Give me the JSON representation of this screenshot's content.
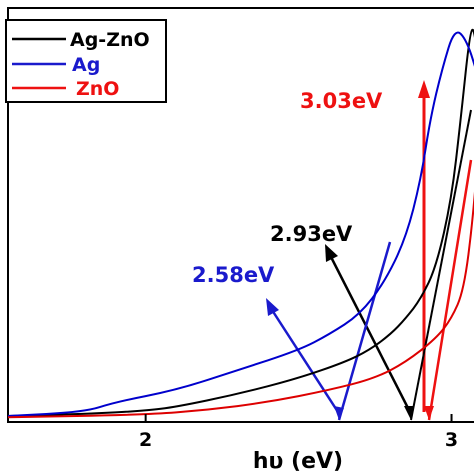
{
  "chart_data": {
    "type": "line",
    "xlabel": "hυ (eV)",
    "ylabel": "",
    "xlim": [
      1.55,
      3.08
    ],
    "ylim": [
      0,
      1
    ],
    "xticks": [
      2,
      3
    ],
    "xtick_labels": [
      "2",
      "3"
    ],
    "grid": false,
    "legend_position": "top-left",
    "series": [
      {
        "name": "Ag-ZnO",
        "color": "#000000",
        "points": [
          [
            1.55,
            0.005
          ],
          [
            1.8,
            0.01
          ],
          [
            2.0,
            0.018
          ],
          [
            2.1,
            0.028
          ],
          [
            2.3,
            0.06
          ],
          [
            2.5,
            0.1
          ],
          [
            2.65,
            0.14
          ],
          [
            2.73,
            0.17
          ],
          [
            2.8,
            0.21
          ],
          [
            2.85,
            0.25
          ],
          [
            2.9,
            0.3
          ],
          [
            2.95,
            0.38
          ],
          [
            3.0,
            0.55
          ],
          [
            3.03,
            0.75
          ],
          [
            3.06,
            0.97
          ],
          [
            3.075,
            0.98
          ],
          [
            3.09,
            0.85
          ]
        ]
      },
      {
        "name": "Ag",
        "color": "#0000cc",
        "points": [
          [
            1.55,
            0.005
          ],
          [
            1.8,
            0.015
          ],
          [
            1.9,
            0.04
          ],
          [
            2.1,
            0.07
          ],
          [
            2.3,
            0.12
          ],
          [
            2.5,
            0.17
          ],
          [
            2.6,
            0.21
          ],
          [
            2.7,
            0.26
          ],
          [
            2.78,
            0.34
          ],
          [
            2.85,
            0.45
          ],
          [
            2.9,
            0.6
          ],
          [
            2.93,
            0.75
          ],
          [
            2.97,
            0.88
          ],
          [
            3.01,
            0.98
          ],
          [
            3.05,
            0.95
          ],
          [
            3.09,
            0.85
          ]
        ]
      },
      {
        "name": "ZnO",
        "color": "#dd0000",
        "points": [
          [
            1.55,
            0.002
          ],
          [
            2.0,
            0.008
          ],
          [
            2.2,
            0.02
          ],
          [
            2.4,
            0.04
          ],
          [
            2.6,
            0.07
          ],
          [
            2.75,
            0.1
          ],
          [
            2.85,
            0.14
          ],
          [
            2.95,
            0.2
          ],
          [
            3.0,
            0.25
          ],
          [
            3.04,
            0.32
          ],
          [
            3.07,
            0.5
          ],
          [
            3.09,
            0.7
          ]
        ]
      }
    ],
    "annotations": [
      {
        "text": "3.03eV",
        "color": "#dd0000"
      },
      {
        "text": "2.93eV",
        "color": "#000000"
      },
      {
        "text": "2.58eV",
        "color": "#0000cc"
      }
    ]
  }
}
